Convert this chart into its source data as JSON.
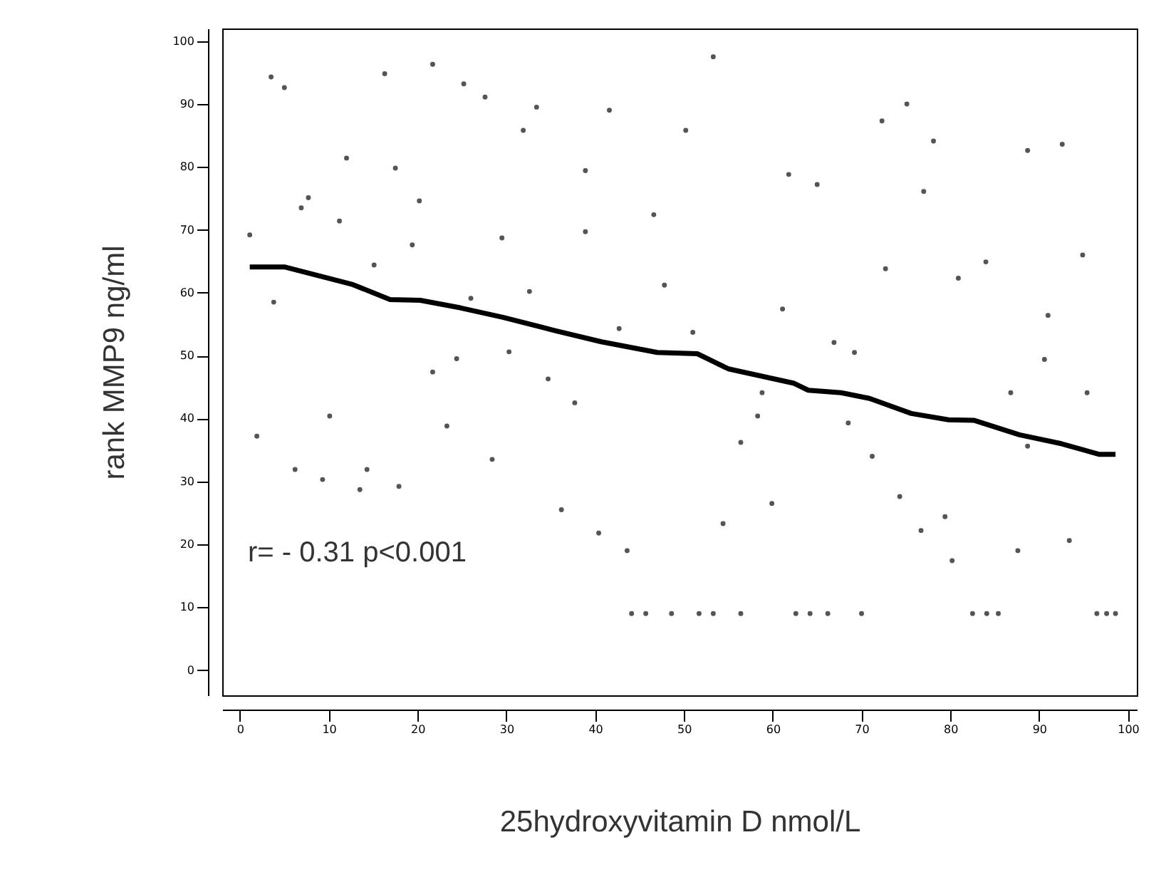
{
  "chart_data": {
    "type": "scatter",
    "xlabel": "25hydroxyvitamin D nmol/L",
    "ylabel": "rank MMP9 ng/ml",
    "annotations": [
      "r= - 0.31 p<0.001"
    ],
    "xlim": [
      -2,
      101
    ],
    "ylim": [
      -4,
      102
    ],
    "xticks": [
      0,
      10,
      20,
      30,
      40,
      50,
      60,
      70,
      80,
      90,
      100
    ],
    "yticks": [
      0,
      10,
      20,
      30,
      40,
      50,
      60,
      70,
      80,
      90,
      100
    ],
    "series": [
      {
        "marker": "circle",
        "color": "#555555",
        "x": [
          3.5,
          5.0,
          16.3,
          21.7,
          25.2,
          27.6,
          33.4,
          41.6,
          31.9,
          12.0,
          17.5,
          38.9,
          7.7,
          6.9,
          20.2,
          11.2,
          1.1,
          19.4,
          29.5,
          38.9,
          46.6,
          15.1,
          3.8,
          47.8,
          26.0,
          32.6,
          42.7,
          30.3,
          24.4,
          21.7,
          34.7,
          53.3,
          50.2,
          75.1,
          72.3,
          78.1,
          88.7,
          92.6,
          61.8,
          65.0,
          77.0,
          72.7,
          80.9,
          84.0,
          94.9,
          61.1,
          51.0,
          66.9,
          69.2,
          91.0,
          90.6,
          37.7,
          10.1,
          23.3,
          1.9,
          28.4,
          6.2,
          14.3,
          9.3,
          13.5,
          17.9,
          36.2,
          40.4,
          43.6,
          44.1,
          45.7,
          48.6,
          51.7,
          53.3,
          56.4,
          62.6,
          64.2,
          66.2,
          70.0,
          82.5,
          84.1,
          85.4,
          96.5,
          97.6,
          98.6,
          58.8,
          58.3,
          56.4,
          68.5,
          71.2,
          86.8,
          95.4,
          88.7,
          59.9,
          54.4,
          74.3,
          79.4,
          76.7,
          80.2,
          87.6,
          93.4
        ],
        "values": [
          94.3,
          92.6,
          94.8,
          96.3,
          93.2,
          91.1,
          89.5,
          89.0,
          85.8,
          81.4,
          79.8,
          79.4,
          75.1,
          73.5,
          74.6,
          71.4,
          69.2,
          67.6,
          68.7,
          69.7,
          72.4,
          64.4,
          58.5,
          61.2,
          59.1,
          60.2,
          54.3,
          50.6,
          49.5,
          47.4,
          46.3,
          97.5,
          85.8,
          90.0,
          87.3,
          84.1,
          82.6,
          83.6,
          78.8,
          77.2,
          76.1,
          63.8,
          62.3,
          64.9,
          66.0,
          57.4,
          53.7,
          52.1,
          50.5,
          56.4,
          49.4,
          42.5,
          40.4,
          38.8,
          37.2,
          33.5,
          31.9,
          31.9,
          30.3,
          28.7,
          29.2,
          25.5,
          21.8,
          19.0,
          9,
          9,
          9,
          9,
          9,
          9,
          9,
          9,
          9,
          9,
          9,
          9,
          9,
          9,
          9,
          9,
          44.1,
          40.4,
          36.2,
          39.3,
          34.0,
          44.1,
          44.1,
          35.6,
          26.5,
          23.3,
          27.6,
          24.4,
          22.2,
          17.4,
          19.0,
          20.6
        ]
      },
      {
        "type": "line",
        "color": "#000000",
        "x": [
          1.1,
          5.0,
          12.7,
          16.9,
          20.3,
          24.8,
          29.6,
          35.4,
          40.7,
          47.0,
          51.5,
          55.0,
          62.4,
          64.0,
          67.7,
          70.9,
          75.6,
          79.8,
          82.7,
          87.8,
          92.5,
          96.8,
          98.6
        ],
        "values": [
          64.1,
          64.1,
          61.3,
          58.9,
          58.8,
          57.6,
          56.1,
          54.0,
          52.2,
          50.5,
          50.3,
          47.9,
          45.6,
          44.5,
          44.1,
          43.2,
          40.8,
          39.8,
          39.7,
          37.4,
          36.0,
          34.3,
          34.3
        ]
      }
    ]
  }
}
